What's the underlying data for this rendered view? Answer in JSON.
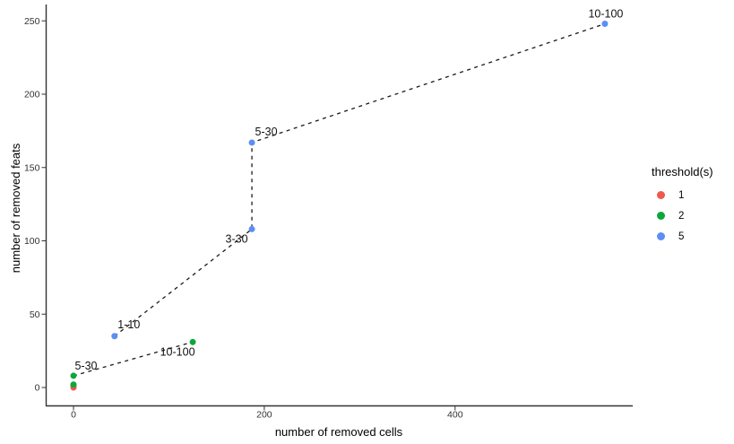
{
  "chart_data": {
    "type": "scatter",
    "title": "",
    "xlabel": "number of removed cells",
    "ylabel": "number of removed feats",
    "x_ticks": [
      0,
      200,
      400
    ],
    "y_ticks": [
      0,
      50,
      100,
      150,
      200,
      250
    ],
    "xlim": [
      -28,
      585
    ],
    "ylim": [
      -12,
      260
    ],
    "grid": false,
    "line_style": "dashed",
    "line_color": "#1a1a1a",
    "legend": {
      "title": "threshold(s)",
      "position": "right"
    },
    "series": [
      {
        "name": "1",
        "color": "#ef594c",
        "points": [
          {
            "x": 0,
            "y": 0
          },
          {
            "x": 0,
            "y": 1
          }
        ],
        "line": []
      },
      {
        "name": "2",
        "color": "#0ca73c",
        "points": [
          {
            "x": 0,
            "y": 2
          },
          {
            "x": 0,
            "y": 8,
            "label": "5-30",
            "label_dx": 14,
            "label_dy": -11
          },
          {
            "x": 125,
            "y": 31,
            "label": "10-100",
            "label_dx": -17,
            "label_dy": 11
          }
        ],
        "line": [
          [
            0,
            8
          ],
          [
            125,
            31
          ]
        ]
      },
      {
        "name": "5",
        "color": "#5b8ef6",
        "points": [
          {
            "x": 43,
            "y": 35,
            "label": "1-10",
            "label_dx": 16,
            "label_dy": -13
          },
          {
            "x": 187,
            "y": 108,
            "label": "3-30",
            "label_dx": -17,
            "label_dy": 11
          },
          {
            "x": 187,
            "y": 167,
            "label": "5-30",
            "label_dx": 16,
            "label_dy": -12
          },
          {
            "x": 557,
            "y": 248,
            "label": "10-100",
            "label_dx": 1,
            "label_dy": -11
          }
        ],
        "line": [
          [
            43,
            35
          ],
          [
            187,
            108
          ],
          [
            187,
            167
          ],
          [
            557,
            248
          ]
        ]
      }
    ]
  }
}
